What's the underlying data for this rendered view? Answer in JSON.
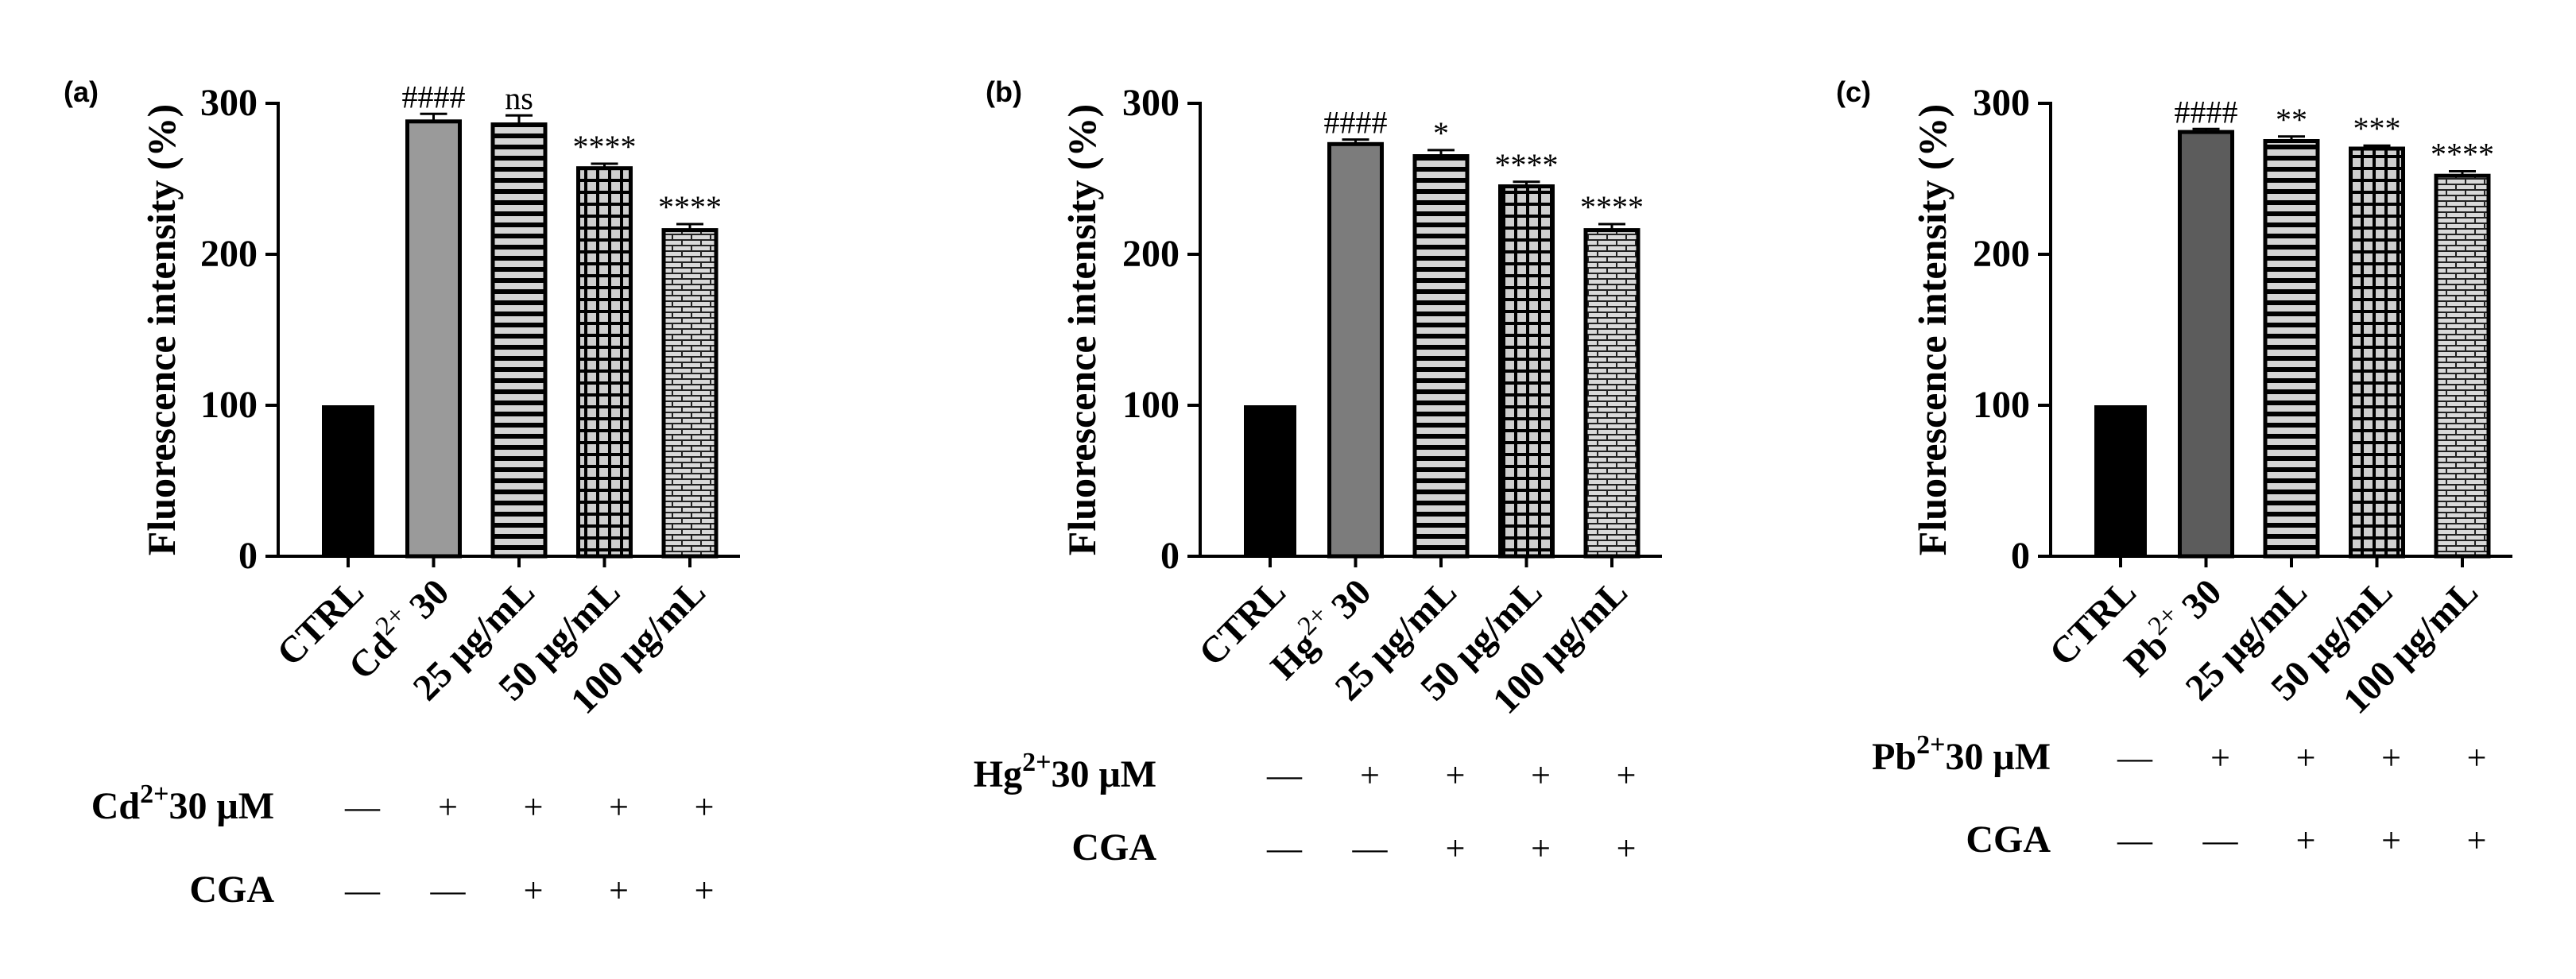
{
  "chart_data": [
    {
      "type": "bar",
      "panel_label": "(a)",
      "ylabel": "Fluorescence intensity (%)",
      "ylim": [
        0,
        300
      ],
      "yticks": [
        "0",
        "100",
        "200",
        "300"
      ],
      "categories": [
        {
          "main": "CTRL",
          "sup": "",
          "suffix": ""
        },
        {
          "main": "Cd",
          "sup": "2+",
          "suffix": " 30"
        },
        {
          "main": "25 μg/mL",
          "sup": "",
          "suffix": ""
        },
        {
          "main": "50 μg/mL",
          "sup": "",
          "suffix": ""
        },
        {
          "main": "100 μg/mL",
          "sup": "",
          "suffix": ""
        }
      ],
      "values": [
        100,
        288,
        286,
        257,
        216
      ],
      "errors": [
        0,
        5,
        6,
        3,
        4
      ],
      "significance": [
        "",
        "####",
        "ns",
        "****",
        "****"
      ],
      "bar_fills": [
        "solid-black",
        "solid-gray",
        "horizontal-stripes",
        "grid",
        "brick"
      ],
      "bar_colors": [
        "#000000",
        "#9a9a9a",
        "#d4d4d4",
        "#cfcfcf",
        "#d9d9d9"
      ],
      "conditions": [
        {
          "label": "Cd",
          "sup": "2+",
          "suffix": "30 μM",
          "values": [
            "—",
            "+",
            "+",
            "+",
            "+"
          ]
        },
        {
          "label": "CGA",
          "sup": "",
          "suffix": "",
          "values": [
            "—",
            "—",
            "+",
            "+",
            "+"
          ]
        }
      ]
    },
    {
      "type": "bar",
      "panel_label": "(b)",
      "ylabel": "Fluorescence intensity (%)",
      "ylim": [
        0,
        300
      ],
      "yticks": [
        "0",
        "100",
        "200",
        "300"
      ],
      "categories": [
        {
          "main": "CTRL",
          "sup": "",
          "suffix": ""
        },
        {
          "main": "Hg",
          "sup": "2+",
          "suffix": " 30"
        },
        {
          "main": "25 μg/mL",
          "sup": "",
          "suffix": ""
        },
        {
          "main": "50 μg/mL",
          "sup": "",
          "suffix": ""
        },
        {
          "main": "100 μg/mL",
          "sup": "",
          "suffix": ""
        }
      ],
      "values": [
        100,
        273,
        265,
        245,
        216
      ],
      "errors": [
        0,
        3,
        4,
        3,
        4
      ],
      "significance": [
        "",
        "####",
        "*",
        "****",
        "****"
      ],
      "bar_fills": [
        "solid-black",
        "solid-gray",
        "horizontal-stripes",
        "grid",
        "brick"
      ],
      "bar_colors": [
        "#000000",
        "#7c7c7c",
        "#d4d4d4",
        "#cfcfcf",
        "#d9d9d9"
      ],
      "conditions": [
        {
          "label": "Hg",
          "sup": "2+",
          "suffix": "30 μM",
          "values": [
            "—",
            "+",
            "+",
            "+",
            "+"
          ]
        },
        {
          "label": "CGA",
          "sup": "",
          "suffix": "",
          "values": [
            "—",
            "—",
            "+",
            "+",
            "+"
          ]
        }
      ]
    },
    {
      "type": "bar",
      "panel_label": "(c)",
      "ylabel": "Fluorescence intensity (%)",
      "ylim": [
        0,
        300
      ],
      "yticks": [
        "0",
        "100",
        "200",
        "300"
      ],
      "categories": [
        {
          "main": "CTRL",
          "sup": "",
          "suffix": ""
        },
        {
          "main": "Pb",
          "sup": "2+",
          "suffix": " 30"
        },
        {
          "main": "25 μg/mL",
          "sup": "",
          "suffix": ""
        },
        {
          "main": "50 μg/mL",
          "sup": "",
          "suffix": ""
        },
        {
          "main": "100 μg/mL",
          "sup": "",
          "suffix": ""
        }
      ],
      "values": [
        100,
        281,
        275,
        270,
        252
      ],
      "errors": [
        0,
        2,
        3,
        2,
        3
      ],
      "significance": [
        "",
        "####",
        "**",
        "***",
        "****"
      ],
      "bar_fills": [
        "solid-black",
        "solid-gray",
        "horizontal-stripes",
        "grid",
        "brick"
      ],
      "bar_colors": [
        "#000000",
        "#5c5c5c",
        "#d4d4d4",
        "#cfcfcf",
        "#d9d9d9"
      ],
      "conditions": [
        {
          "label": "Pb",
          "sup": "2+",
          "suffix": "30 μM",
          "values": [
            "—",
            "+",
            "+",
            "+",
            "+"
          ]
        },
        {
          "label": "CGA",
          "sup": "",
          "suffix": "",
          "values": [
            "—",
            "—",
            "+",
            "+",
            "+"
          ]
        }
      ]
    }
  ]
}
